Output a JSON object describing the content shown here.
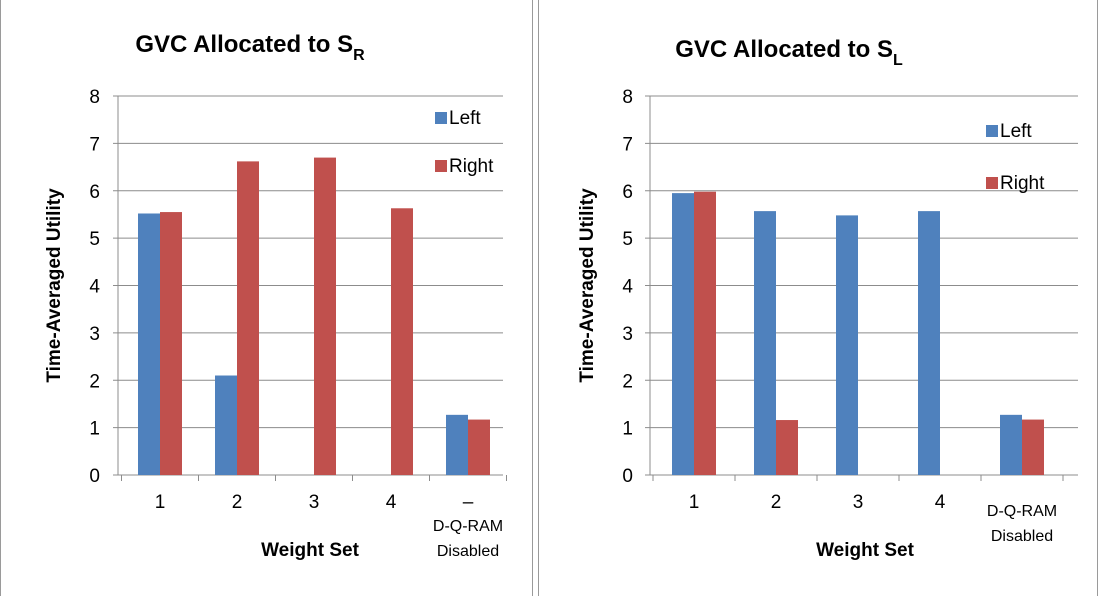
{
  "chart_data": [
    {
      "type": "bar",
      "title": "GVC Allocated to S",
      "title_subscript": "R",
      "xlabel": "Weight Set",
      "ylabel": "Time-Averaged Utility",
      "ylim": [
        0,
        8
      ],
      "yticks": [
        "0",
        "1",
        "2",
        "3",
        "4",
        "5",
        "6",
        "7",
        "8"
      ],
      "categories": [
        "1",
        "2",
        "3",
        "4",
        "D-Q-RAM Disabled"
      ],
      "category_labels": [
        "1",
        "2",
        "3",
        "4",
        "–"
      ],
      "series": [
        {
          "name": "Left",
          "color": "#4f81bd",
          "values": [
            5.52,
            2.1,
            0,
            0,
            1.27
          ]
        },
        {
          "name": "Right",
          "color": "#c0504d",
          "values": [
            5.55,
            6.62,
            6.7,
            5.63,
            1.17
          ]
        }
      ],
      "grid": true,
      "legend": "top-right"
    },
    {
      "type": "bar",
      "title": "GVC Allocated to S",
      "title_subscript": "L",
      "xlabel": "Weight Set",
      "ylabel": "Time-Averaged Utility",
      "ylim": [
        0,
        8
      ],
      "yticks": [
        "0",
        "1",
        "2",
        "3",
        "4",
        "5",
        "6",
        "7",
        "8"
      ],
      "categories": [
        "1",
        "2",
        "3",
        "4",
        "D-Q-RAM Disabled"
      ],
      "category_labels": [
        "1",
        "2",
        "3",
        "4",
        ""
      ],
      "series": [
        {
          "name": "Left",
          "color": "#4f81bd",
          "values": [
            5.95,
            5.57,
            5.48,
            5.57,
            1.27
          ]
        },
        {
          "name": "Right",
          "color": "#c0504d",
          "values": [
            5.98,
            1.16,
            0,
            0,
            1.17
          ]
        }
      ],
      "grid": true,
      "legend": "top-right"
    }
  ],
  "extra_label": {
    "line1": "D-Q-RAM",
    "line2": "Disabled"
  }
}
